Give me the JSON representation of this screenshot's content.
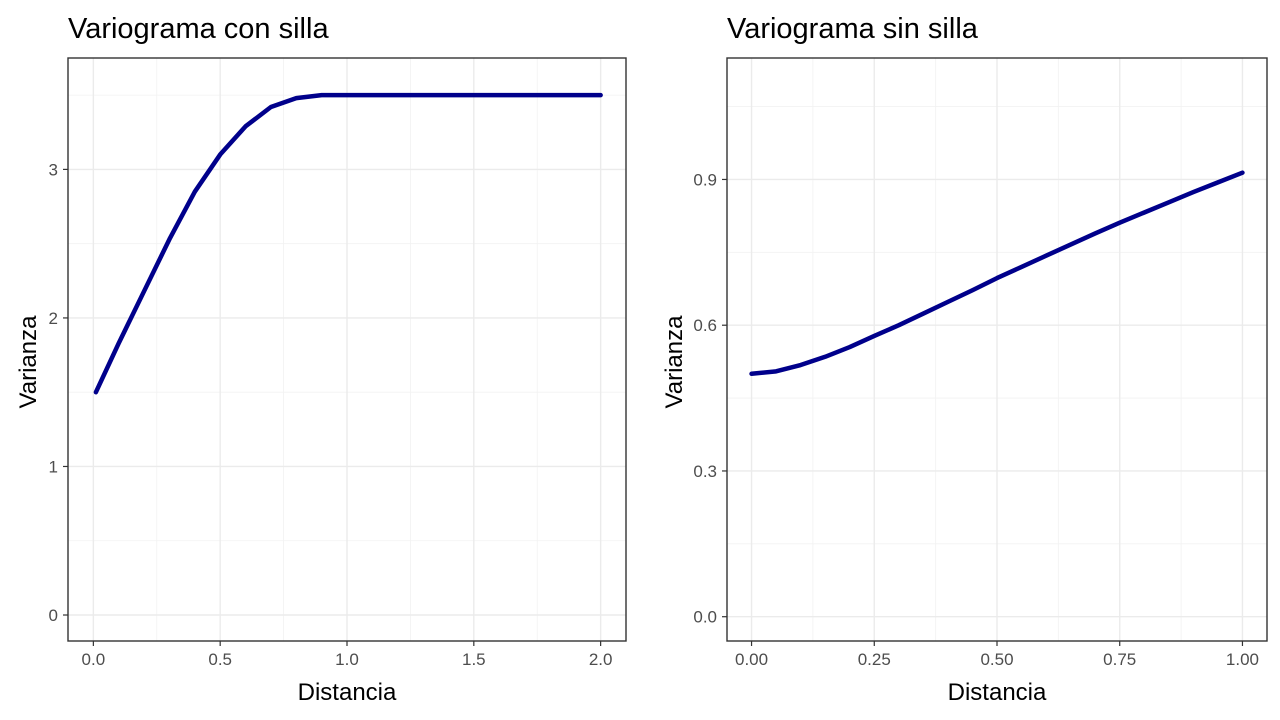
{
  "chart_data": [
    {
      "type": "line",
      "title": "Variograma con silla",
      "xlabel": "Distancia",
      "ylabel": "Varianza",
      "xlim": [
        -0.1,
        2.1
      ],
      "ylim": [
        -0.175,
        3.75
      ],
      "x_ticks": [
        0.0,
        0.5,
        1.0,
        1.5,
        2.0
      ],
      "x_tick_labels": [
        "0.0",
        "0.5",
        "1.0",
        "1.5",
        "2.0"
      ],
      "y_ticks": [
        0,
        1,
        2,
        3
      ],
      "y_tick_labels": [
        "0",
        "1",
        "2",
        "3"
      ],
      "grid": true,
      "series": [
        {
          "color": "#00008B",
          "x": [
            0.01,
            0.1,
            0.2,
            0.3,
            0.4,
            0.5,
            0.6,
            0.7,
            0.8,
            0.9,
            1.0,
            1.25,
            1.5,
            1.75,
            2.0
          ],
          "y": [
            1.5,
            1.83,
            2.18,
            2.53,
            2.85,
            3.1,
            3.29,
            3.42,
            3.48,
            3.5,
            3.5,
            3.5,
            3.5,
            3.5,
            3.5
          ]
        }
      ]
    },
    {
      "type": "line",
      "title": "Variograma sin silla",
      "xlabel": "Distancia",
      "ylabel": "Varianza",
      "xlim": [
        -0.05,
        1.05
      ],
      "ylim": [
        -0.05,
        1.15
      ],
      "x_ticks": [
        0.0,
        0.25,
        0.5,
        0.75,
        1.0
      ],
      "x_tick_labels": [
        "0.00",
        "0.25",
        "0.50",
        "0.75",
        "1.00"
      ],
      "y_ticks": [
        0.0,
        0.3,
        0.6,
        0.9
      ],
      "y_tick_labels": [
        "0.0",
        "0.3",
        "0.6",
        "0.9"
      ],
      "grid": true,
      "series": [
        {
          "color": "#00008B",
          "x": [
            0.0,
            0.05,
            0.1,
            0.15,
            0.2,
            0.25,
            0.3,
            0.35,
            0.4,
            0.45,
            0.5,
            0.55,
            0.6,
            0.65,
            0.7,
            0.75,
            0.8,
            0.85,
            0.9,
            0.95,
            1.0
          ],
          "y": [
            0.5,
            0.505,
            0.518,
            0.535,
            0.555,
            0.578,
            0.6,
            0.624,
            0.648,
            0.672,
            0.697,
            0.72,
            0.743,
            0.766,
            0.789,
            0.811,
            0.832,
            0.853,
            0.874,
            0.894,
            0.914
          ]
        }
      ]
    }
  ]
}
